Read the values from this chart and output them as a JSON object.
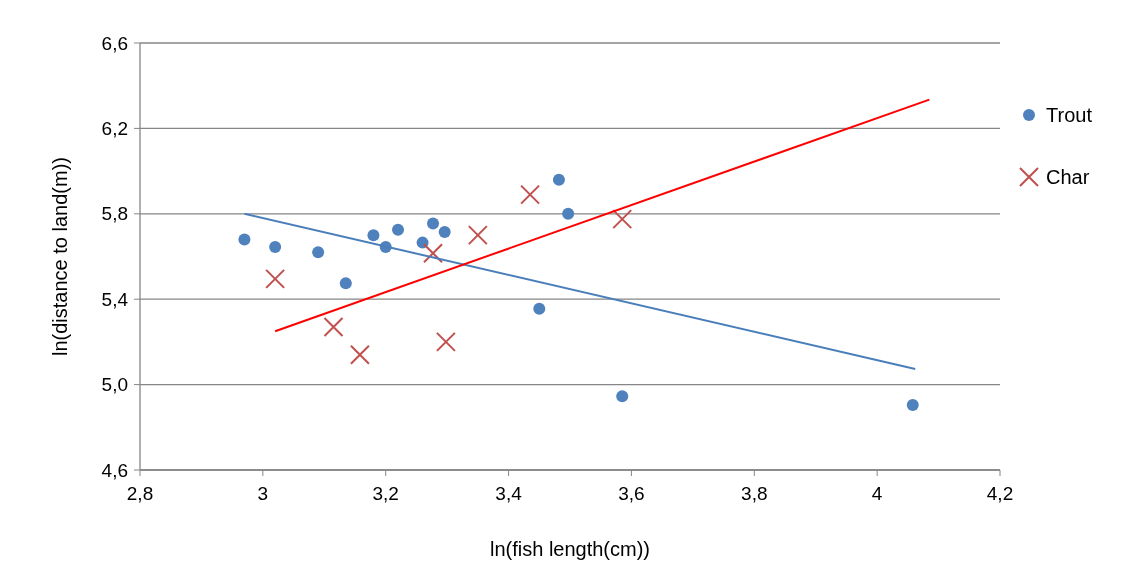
{
  "chart_data": {
    "type": "scatter",
    "xlabel": "ln(fish length(cm))",
    "ylabel": "ln(distance to land(m))",
    "xlim": [
      2.8,
      4.2
    ],
    "xticks": [
      {
        "value": 2.8,
        "label": "2,8"
      },
      3,
      {
        "value": 3.2,
        "label": "3,2"
      },
      {
        "value": 3.4,
        "label": "3,4"
      },
      {
        "value": 3.6,
        "label": "3,6"
      },
      {
        "value": 3.8,
        "label": "3,8"
      },
      4,
      {
        "value": 4.2,
        "label": "4,2"
      }
    ],
    "ylim": [
      4.6,
      6.6
    ],
    "yticks": [
      {
        "value": 4.6,
        "label": "4,6"
      },
      {
        "value": 5.0,
        "label": "5,0"
      },
      {
        "value": 5.4,
        "label": "5,4"
      },
      {
        "value": 5.8,
        "label": "5,8"
      },
      {
        "value": 6.2,
        "label": "6,2"
      },
      {
        "value": 6.6,
        "label": "6,6"
      }
    ],
    "grid": "y",
    "legend": "right",
    "series": [
      {
        "name": "Trout",
        "marker": "circle",
        "color": "#4f81bd",
        "x": [
          2.97,
          3.02,
          3.09,
          3.135,
          3.18,
          3.2,
          3.22,
          3.26,
          3.277,
          3.296,
          3.45,
          3.482,
          3.497,
          3.585,
          4.058
        ],
        "values": [
          5.68,
          5.645,
          5.62,
          5.475,
          5.7,
          5.645,
          5.725,
          5.665,
          5.755,
          5.715,
          5.355,
          5.96,
          5.8,
          4.945,
          4.905
        ]
      },
      {
        "name": "Char",
        "marker": "cross",
        "color": "#c0504d",
        "x": [
          3.02,
          3.115,
          3.158,
          3.277,
          3.298,
          3.35,
          3.435,
          3.585
        ],
        "values": [
          5.495,
          5.27,
          5.14,
          5.615,
          5.2,
          5.7,
          5.89,
          5.775
        ]
      },
      {
        "type": "line",
        "marker": "none",
        "color": "#4a7ebb",
        "x": [
          2.97,
          4.062
        ],
        "values": [
          5.8,
          5.073
        ]
      },
      {
        "type": "line",
        "marker": "none",
        "color": "#ff0000",
        "x": [
          3.02,
          4.085
        ],
        "values": [
          5.25,
          6.335
        ]
      }
    ]
  }
}
